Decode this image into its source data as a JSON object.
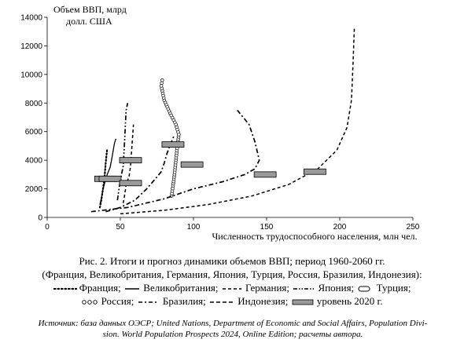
{
  "chart_data": {
    "type": "line",
    "title": "Объем ВВП, млрд долл. США",
    "title_lines": [
      "Объем ВВП, млрд",
      "долл. США"
    ],
    "xlabel": "Численность трудоспособного населения, млн чел.",
    "ylabel": "Объем ВВП, млрд долл. США",
    "xlim": [
      0,
      250
    ],
    "ylim": [
      0,
      14000
    ],
    "x_ticks": [
      0,
      50,
      100,
      150,
      200,
      250
    ],
    "y_ticks": [
      0,
      2000,
      4000,
      6000,
      8000,
      10000,
      12000,
      14000
    ],
    "grid": false,
    "legend": "bottom",
    "series": [
      {
        "name": "Франция",
        "style": "dotted",
        "points": [
          [
            36,
            700
          ],
          [
            37,
            1200
          ],
          [
            38,
            1900
          ],
          [
            39,
            2600
          ],
          [
            39.5,
            3200
          ],
          [
            40,
            3800
          ],
          [
            40.5,
            4300
          ],
          [
            41,
            4800
          ]
        ],
        "marker_2020": [
          40,
          2700
        ]
      },
      {
        "name": "Великобритания",
        "style": "solid",
        "points": [
          [
            36,
            900
          ],
          [
            37,
            1300
          ],
          [
            38,
            1900
          ],
          [
            39.5,
            2500
          ],
          [
            41,
            3000
          ],
          [
            43,
            3500
          ],
          [
            44,
            4000
          ],
          [
            45,
            4600
          ],
          [
            46,
            5200
          ],
          [
            47,
            5500
          ]
        ],
        "marker_2020": [
          43,
          2700
        ]
      },
      {
        "name": "Германия",
        "style": "dashed",
        "points": [
          [
            52,
            1000
          ],
          [
            53,
            1600
          ],
          [
            54,
            2300
          ],
          [
            56,
            2900
          ],
          [
            57,
            3600
          ],
          [
            57.5,
            4300
          ],
          [
            58,
            5100
          ],
          [
            58.5,
            5800
          ],
          [
            59,
            6500
          ]
        ],
        "marker_2020": [
          57,
          4000
        ]
      },
      {
        "name": "Япония",
        "style": "dashdotdot",
        "points": [
          [
            48,
            1200
          ],
          [
            49,
            1900
          ],
          [
            50,
            2600
          ],
          [
            51,
            3100
          ],
          [
            52,
            3600
          ],
          [
            52.5,
            4500
          ],
          [
            53,
            5500
          ],
          [
            53.5,
            6600
          ],
          [
            54,
            7500
          ],
          [
            55,
            8000
          ]
        ],
        "marker_2020": [
          57,
          2400
        ]
      },
      {
        "name": "Турция",
        "style": "dashdot",
        "points": [
          [
            40,
            400
          ],
          [
            50,
            700
          ],
          [
            60,
            1200
          ],
          [
            68,
            2000
          ],
          [
            74,
            2700
          ],
          [
            78,
            3200
          ],
          [
            80,
            3800
          ],
          [
            82,
            4500
          ],
          [
            85,
            5300
          ],
          [
            87,
            5800
          ]
        ],
        "marker_2020": [
          86,
          5100
        ]
      },
      {
        "name": "Россия",
        "style": "circles",
        "points": [
          [
            85,
            1500
          ],
          [
            86,
            2200
          ],
          [
            87,
            3000
          ],
          [
            88,
            4000
          ],
          [
            89,
            5000
          ],
          [
            90,
            5800
          ],
          [
            88,
            6500
          ],
          [
            84,
            7300
          ],
          [
            80,
            8200
          ],
          [
            78,
            9200
          ],
          [
            79,
            9800
          ]
        ],
        "marker_2020": [
          99,
          3700
        ]
      },
      {
        "name": "Бразилия",
        "style": "dashdot",
        "points": [
          [
            30,
            400
          ],
          [
            55,
            700
          ],
          [
            80,
            1300
          ],
          [
            100,
            2000
          ],
          [
            120,
            2500
          ],
          [
            135,
            3000
          ],
          [
            142,
            3400
          ],
          [
            145,
            4000
          ],
          [
            142,
            5300
          ],
          [
            138,
            6500
          ],
          [
            130,
            7500
          ]
        ],
        "marker_2020": [
          149,
          3000
        ]
      },
      {
        "name": "Индонезия",
        "style": "dashed",
        "points": [
          [
            50,
            250
          ],
          [
            80,
            500
          ],
          [
            110,
            900
          ],
          [
            140,
            1500
          ],
          [
            165,
            2300
          ],
          [
            185,
            3400
          ],
          [
            198,
            4700
          ],
          [
            205,
            6300
          ],
          [
            208,
            8200
          ],
          [
            209,
            10500
          ],
          [
            210,
            13300
          ]
        ],
        "marker_2020": [
          183,
          3200
        ]
      }
    ],
    "legend_2020": "уровень 2020 г."
  },
  "caption": {
    "line1": "Рис. 2. Итоги и прогноз динамики объемов ВВП; период 1960-2060 гг.",
    "line2": "(Франция, Великобритания, Германия, Япония, Турция, Россия, Бразилия, Индонезия):",
    "legend_items": [
      "Франция;",
      "Великобритания;",
      "Германия;",
      "Япония;",
      "Турция;",
      "Россия;",
      "Бразилия;",
      "Индонезия;",
      "уровень 2020 г."
    ]
  },
  "source": {
    "line1": "Источник: база данных ОЭСР; United Nations, Department of Economic and Social Affairs, Population Divi-",
    "line2": "sion. World Population Prospects 2024, Online Edition; расчеты автора."
  }
}
